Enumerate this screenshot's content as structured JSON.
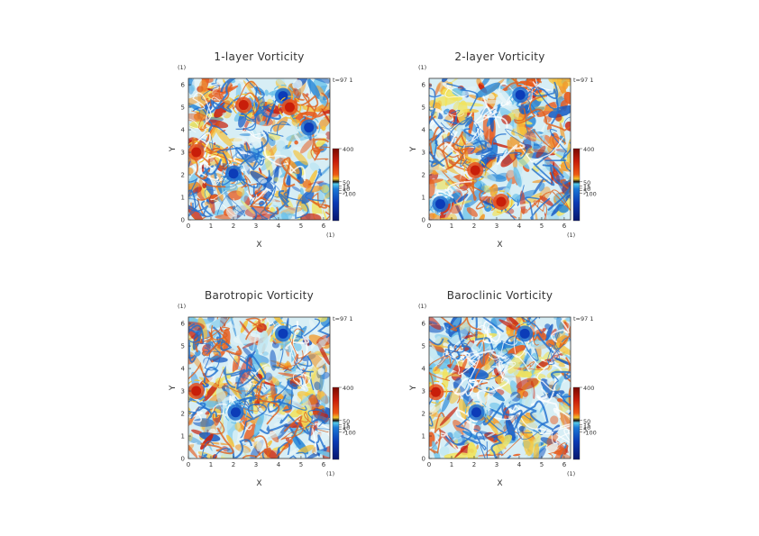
{
  "chart_data": [
    {
      "type": "heatmap",
      "title": "1-layer Vorticity",
      "xlabel": "X",
      "ylabel": "Y",
      "x_unit": "(1)",
      "y_unit": "(1)",
      "xlim": [
        0,
        6.283
      ],
      "ylim": [
        0,
        6.283
      ],
      "xticks": [
        "0",
        "1",
        "2",
        "3",
        "4",
        "5",
        "6"
      ],
      "yticks": [
        "0",
        "1",
        "2",
        "3",
        "4",
        "5",
        "6"
      ],
      "time_label": "t=97 1",
      "colorbar": {
        "ticks": [
          "400",
          "50",
          "15",
          "10",
          "5",
          "-100"
        ]
      },
      "vortices": [
        {
          "x": 0.35,
          "y": 3.0,
          "sign": "positive"
        },
        {
          "x": 2.0,
          "y": 2.05,
          "sign": "negative"
        },
        {
          "x": 4.2,
          "y": 5.5,
          "sign": "negative"
        },
        {
          "x": 4.5,
          "y": 5.0,
          "sign": "positive"
        },
        {
          "x": 2.45,
          "y": 5.1,
          "sign": "positive"
        },
        {
          "x": 5.35,
          "y": 4.1,
          "sign": "negative"
        }
      ]
    },
    {
      "type": "heatmap",
      "title": "2-layer Vorticity",
      "xlabel": "X",
      "ylabel": "Y",
      "x_unit": "(1)",
      "y_unit": "(1)",
      "xlim": [
        0,
        6.283
      ],
      "ylim": [
        0,
        6.283
      ],
      "xticks": [
        "0",
        "1",
        "2",
        "3",
        "4",
        "5",
        "6"
      ],
      "yticks": [
        "0",
        "1",
        "2",
        "3",
        "4",
        "5",
        "6"
      ],
      "time_label": "t=97 1",
      "colorbar": {
        "ticks": [
          "400",
          "50",
          "15",
          "10",
          "5",
          "-100"
        ]
      },
      "vortices": [
        {
          "x": 4.05,
          "y": 5.55,
          "sign": "negative"
        },
        {
          "x": 2.05,
          "y": 2.2,
          "sign": "positive"
        },
        {
          "x": 0.5,
          "y": 0.7,
          "sign": "negative"
        },
        {
          "x": 3.2,
          "y": 0.8,
          "sign": "positive"
        }
      ]
    },
    {
      "type": "heatmap",
      "title": "Barotropic Vorticity",
      "xlabel": "X",
      "ylabel": "Y",
      "x_unit": "(1)",
      "y_unit": "(1)",
      "xlim": [
        0,
        6.283
      ],
      "ylim": [
        0,
        6.283
      ],
      "xticks": [
        "0",
        "1",
        "2",
        "3",
        "4",
        "5",
        "6"
      ],
      "yticks": [
        "0",
        "1",
        "2",
        "3",
        "4",
        "5",
        "6"
      ],
      "time_label": "t=97 1",
      "colorbar": {
        "ticks": [
          "400",
          "50",
          "15",
          "10",
          "5",
          "-100"
        ]
      },
      "vortices": [
        {
          "x": 0.35,
          "y": 3.0,
          "sign": "positive"
        },
        {
          "x": 2.1,
          "y": 2.05,
          "sign": "negative"
        },
        {
          "x": 4.2,
          "y": 5.55,
          "sign": "negative"
        }
      ]
    },
    {
      "type": "heatmap",
      "title": "Baroclinic Vorticity",
      "xlabel": "X",
      "ylabel": "Y",
      "x_unit": "(1)",
      "y_unit": "(1)",
      "xlim": [
        0,
        6.283
      ],
      "ylim": [
        0,
        6.283
      ],
      "xticks": [
        "0",
        "1",
        "2",
        "3",
        "4",
        "5",
        "6"
      ],
      "yticks": [
        "0",
        "1",
        "2",
        "3",
        "4",
        "5",
        "6"
      ],
      "time_label": "t=97 1",
      "colorbar": {
        "ticks": [
          "400",
          "50",
          "15",
          "10",
          "5",
          "-100"
        ]
      },
      "vortices": [
        {
          "x": 0.3,
          "y": 2.95,
          "sign": "positive"
        },
        {
          "x": 2.1,
          "y": 2.05,
          "sign": "negative"
        },
        {
          "x": 4.25,
          "y": 5.55,
          "sign": "negative"
        }
      ]
    }
  ]
}
